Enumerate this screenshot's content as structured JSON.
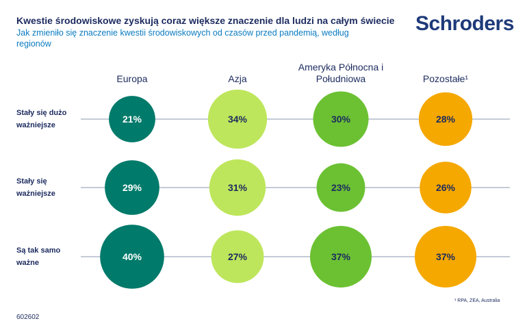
{
  "header": {
    "title": "Kwestie środowiskowe zyskują coraz większe znaczenie dla ludzi na całym świecie",
    "subtitle": "Jak zmieniło się znaczenie kwestii środowiskowych od czasów przed pandemią, według regionów",
    "logo": "Schroders"
  },
  "chart_data": {
    "type": "bubble-grid",
    "title": "Kwestie środowiskowe zyskują coraz większe znaczenie dla ludzi na całym świecie",
    "columns": [
      "Europa",
      "Azja",
      "Ameryka Północna i Południowa",
      "Pozostałe¹"
    ],
    "rows": [
      "Stały się dużo ważniejsze",
      "Stały się ważniejsze",
      "Są tak samo ważne"
    ],
    "series": [
      {
        "name": "Europa",
        "values": [
          21,
          29,
          40
        ],
        "color": "#007a6a"
      },
      {
        "name": "Azja",
        "values": [
          34,
          31,
          27
        ],
        "color": "#bee65c"
      },
      {
        "name": "Ameryka Północna i Południowa",
        "values": [
          30,
          23,
          37
        ],
        "color": "#6cc133"
      },
      {
        "name": "Pozostałe¹",
        "values": [
          28,
          26,
          37
        ],
        "color": "#f5a800"
      }
    ],
    "unit": "%"
  },
  "footnote": "¹ RPA, ZEA, Australia",
  "code": "602602"
}
